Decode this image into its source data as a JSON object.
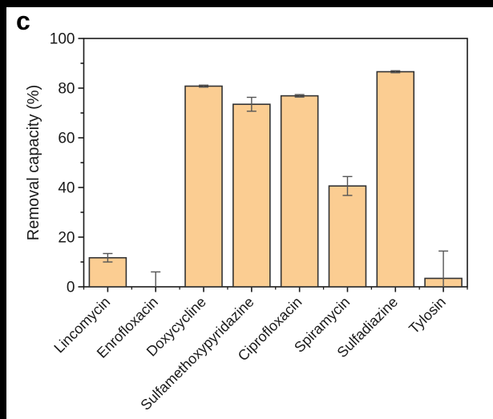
{
  "frame": {
    "panel_label": "c"
  },
  "chart_data": {
    "type": "bar",
    "title": "",
    "panel_label": "c",
    "ylabel": "Removal capacity (%)",
    "xlabel": "",
    "ylim": [
      0,
      100
    ],
    "ytick_step": 20,
    "yminor_step": 10,
    "ytick_labels": [
      "0",
      "20",
      "40",
      "60",
      "80",
      "100"
    ],
    "grid": false,
    "legend": "none",
    "bar_fill": "#FBCD92",
    "bar_edge": "#333333",
    "error_color": "#555555",
    "axis_color": "#1a1a1a",
    "categories": [
      "Lincomycin",
      "Enrofloxacin",
      "Doxycycline",
      "Sulfamethoxypyridazine",
      "Ciprofloxacin",
      "Spiramycin",
      "Sulfadiazine",
      "Tylosin"
    ],
    "values": [
      11.7,
      0,
      80.8,
      73.5,
      76.9,
      40.6,
      86.6,
      3.4
    ],
    "errors": [
      1.7,
      6.0,
      0.4,
      2.8,
      0.5,
      3.8,
      0.4,
      11.0
    ]
  }
}
